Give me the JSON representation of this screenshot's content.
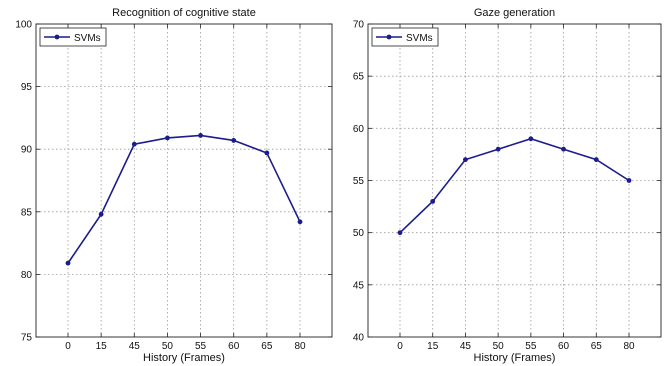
{
  "chart_data": [
    {
      "type": "line",
      "title": "Recognition of cognitive state",
      "xlabel": "History (Frames)",
      "ylabel": "",
      "categories": [
        "0",
        "15",
        "45",
        "50",
        "55",
        "60",
        "65",
        "80"
      ],
      "ylim": [
        75,
        100
      ],
      "yticks": [
        75,
        80,
        85,
        90,
        95,
        100
      ],
      "grid": true,
      "legend": "top-left",
      "series": [
        {
          "name": "SVMs",
          "color": "#1c1c8c",
          "values": [
            80.9,
            84.8,
            90.4,
            90.9,
            91.1,
            90.7,
            89.7,
            84.2
          ]
        }
      ]
    },
    {
      "type": "line",
      "title": "Gaze generation",
      "xlabel": "History (Frames)",
      "ylabel": "",
      "categories": [
        "0",
        "15",
        "45",
        "50",
        "55",
        "60",
        "65",
        "80"
      ],
      "ylim": [
        40,
        70
      ],
      "yticks": [
        40,
        45,
        50,
        55,
        60,
        65,
        70
      ],
      "grid": true,
      "legend": "top-left",
      "series": [
        {
          "name": "SVMs",
          "color": "#1c1c8c",
          "values": [
            50,
            53,
            57,
            58,
            59,
            58,
            57,
            55
          ]
        }
      ]
    }
  ]
}
